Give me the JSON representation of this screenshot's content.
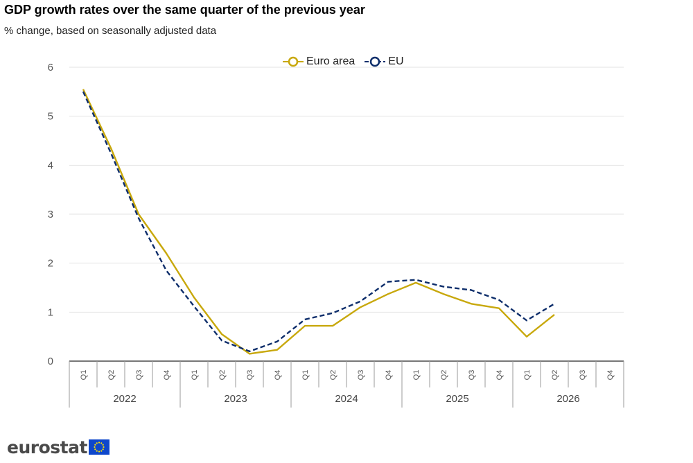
{
  "header": {
    "title": "GDP growth rates over the same quarter of the previous year",
    "subtitle": "% change, based on seasonally adjusted data"
  },
  "branding": {
    "logo_text": "eurostat",
    "flag_color": "#0e47cb",
    "star_color": "#ffe200"
  },
  "chart_data": {
    "type": "line",
    "categories": [
      "Q1",
      "Q2",
      "Q3",
      "Q4",
      "Q1",
      "Q2",
      "Q3",
      "Q4",
      "Q1",
      "Q2",
      "Q3",
      "Q4",
      "Q1",
      "Q2",
      "Q3",
      "Q4",
      "Q1",
      "Q2",
      "Q3",
      "Q4"
    ],
    "years": [
      "2022",
      "2023",
      "2024",
      "2025",
      "2026"
    ],
    "ylim": [
      0,
      6
    ],
    "yticks": [
      "0",
      "1",
      "2",
      "3",
      "4",
      "5",
      "6"
    ],
    "grid": true,
    "legend_position": "top-center",
    "series": [
      {
        "name": "Euro area",
        "color": "#c8a80c",
        "dash": false,
        "values": [
          5.55,
          4.35,
          3.0,
          2.2,
          1.3,
          0.55,
          0.15,
          0.23,
          0.72,
          0.72,
          1.1,
          1.37,
          1.6,
          1.37,
          1.17,
          1.08,
          0.5,
          0.95,
          null,
          null
        ]
      },
      {
        "name": "EU",
        "color": "#0e2e6b",
        "dash": true,
        "values": [
          5.5,
          4.25,
          2.92,
          1.85,
          1.12,
          0.42,
          0.2,
          0.4,
          0.85,
          0.98,
          1.22,
          1.62,
          1.66,
          1.52,
          1.45,
          1.25,
          0.83,
          1.17,
          null,
          null
        ]
      }
    ]
  }
}
